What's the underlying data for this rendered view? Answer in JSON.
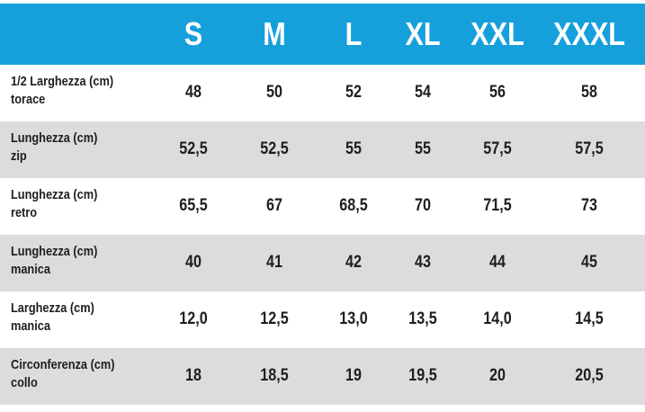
{
  "table": {
    "header": [
      "S",
      "M",
      "L",
      "XL",
      "XXL",
      "XXXL"
    ],
    "rows": [
      {
        "label": [
          "1/2 Larghezza (cm)",
          "torace"
        ],
        "values": [
          "48",
          "50",
          "52",
          "54",
          "56",
          "58"
        ]
      },
      {
        "label": [
          "Lunghezza (cm)",
          "zip"
        ],
        "values": [
          "52,5",
          "52,5",
          "55",
          "55",
          "57,5",
          "57,5"
        ]
      },
      {
        "label": [
          "Lunghezza (cm)",
          "retro"
        ],
        "values": [
          "65,5",
          "67",
          "68,5",
          "70",
          "71,5",
          "73"
        ]
      },
      {
        "label": [
          "Lunghezza (cm)",
          "manica"
        ],
        "values": [
          "40",
          "41",
          "42",
          "43",
          "44",
          "45"
        ]
      },
      {
        "label": [
          "Larghezza (cm)",
          "manica"
        ],
        "values": [
          "12,0",
          "12,5",
          "13,0",
          "13,5",
          "14,0",
          "14,5"
        ]
      },
      {
        "label": [
          "Circonferenza (cm)",
          "collo"
        ],
        "values": [
          "18",
          "18,5",
          "19",
          "19,5",
          "20",
          "20,5"
        ]
      }
    ]
  }
}
